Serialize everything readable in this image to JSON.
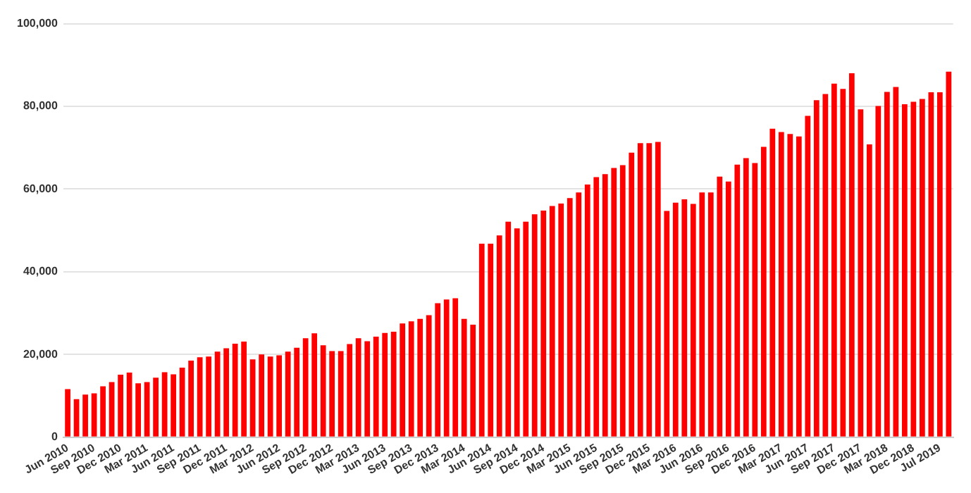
{
  "chart_data": {
    "type": "bar",
    "categories": [
      "Jun 2010",
      null,
      null,
      "Sep 2010",
      null,
      null,
      "Dec 2010",
      null,
      null,
      "Mar 2011",
      null,
      null,
      "Jun 2011",
      null,
      null,
      "Sep 2011",
      null,
      null,
      "Dec 2011",
      null,
      null,
      "Mar 2012",
      null,
      null,
      "Jun 2012",
      null,
      null,
      "Sep 2012",
      null,
      null,
      "Dec 2012",
      null,
      null,
      "Mar 2013",
      null,
      null,
      "Jun 2013",
      null,
      null,
      "Sep 2013",
      null,
      null,
      "Dec 2013",
      null,
      null,
      "Mar 2014",
      null,
      null,
      "Jun 2014",
      null,
      null,
      "Sep 2014",
      null,
      null,
      "Dec 2014",
      null,
      null,
      "Mar 2015",
      null,
      null,
      "Jun 2015",
      null,
      null,
      "Sep 2015",
      null,
      null,
      "Dec 2015",
      null,
      null,
      "Mar 2016",
      null,
      null,
      "Jun 2016",
      null,
      null,
      "Sep 2016",
      null,
      null,
      "Dec 2016",
      null,
      null,
      "Mar 2017",
      null,
      null,
      "Jun 2017",
      null,
      null,
      "Sep 2017",
      null,
      null,
      "Dec 2017",
      null,
      null,
      "Mar 2018",
      null,
      null,
      "Dec 2018",
      null,
      null,
      "Jul 2019",
      null
    ],
    "values": [
      11600,
      9200,
      10300,
      10600,
      12300,
      13300,
      15100,
      15600,
      13000,
      13300,
      14400,
      15700,
      15200,
      16800,
      18500,
      19300,
      19500,
      20700,
      21500,
      22600,
      23100,
      18800,
      20000,
      19500,
      19800,
      20700,
      21600,
      23900,
      25100,
      22200,
      20800,
      20800,
      22500,
      23900,
      23200,
      24300,
      25200,
      25500,
      27500,
      28000,
      28600,
      29500,
      32400,
      33300,
      33600,
      28600,
      27200,
      46800,
      46800,
      48800,
      52100,
      50500,
      52100,
      53900,
      54800,
      55900,
      56500,
      57800,
      59200,
      61100,
      62900,
      63600,
      65100,
      65800,
      68800,
      71100,
      71100,
      71400,
      54700,
      56700,
      57500,
      56400,
      59200,
      59200,
      63000,
      61800,
      65900,
      67500,
      66300,
      70200,
      74600,
      73800,
      73300,
      72700,
      77700,
      81500,
      83000,
      85500,
      84200,
      88000,
      79300,
      70800,
      80100,
      83500,
      84700,
      80500,
      81100,
      81800,
      83400,
      83400,
      88400
    ],
    "color": "#ff0000",
    "ylim": [
      0,
      100000
    ],
    "yticks": [
      {
        "value": 0,
        "label": "0"
      },
      {
        "value": 20000,
        "label": "20,000"
      },
      {
        "value": 40000,
        "label": "40,000"
      },
      {
        "value": 60000,
        "label": "60,000"
      },
      {
        "value": 80000,
        "label": "80,000"
      },
      {
        "value": 100000,
        "label": "100,000"
      }
    ],
    "grid": "y",
    "legend": false
  }
}
